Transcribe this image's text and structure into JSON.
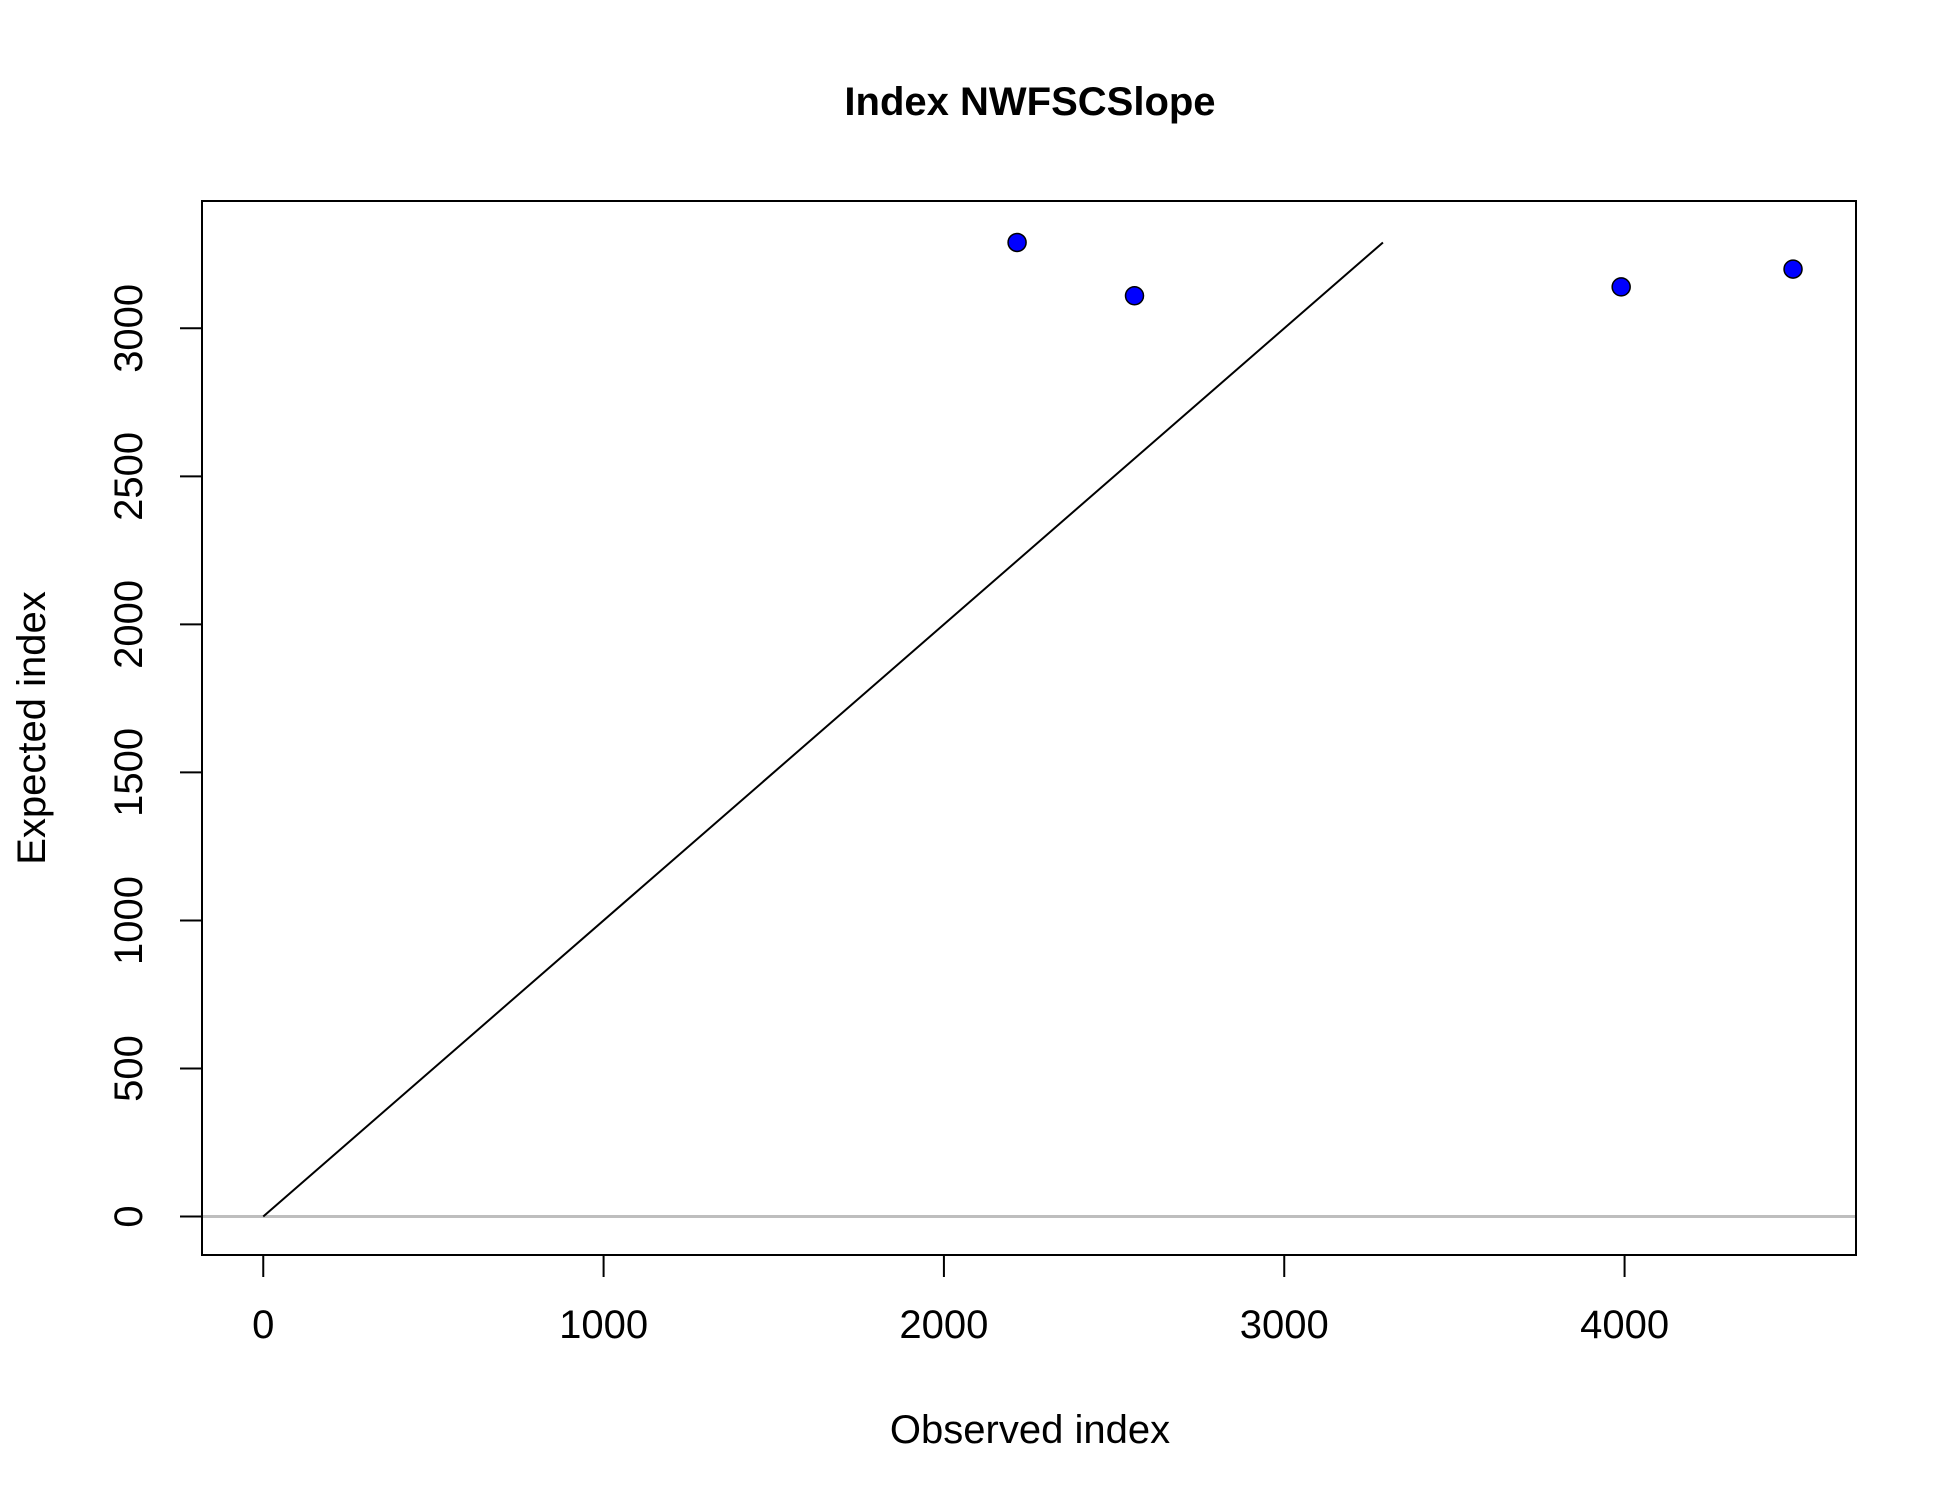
{
  "chart_data": {
    "type": "scatter",
    "title": "Index NWFSCSlope",
    "xlabel": "Observed index",
    "ylabel": "Expected index",
    "xlim": [
      -180,
      4680
    ],
    "ylim": [
      -130,
      3430
    ],
    "x_ticks": [
      0,
      1000,
      2000,
      3000,
      4000
    ],
    "y_ticks": [
      0,
      500,
      1000,
      1500,
      2000,
      2500,
      3000
    ],
    "points": [
      {
        "x": 2215,
        "y": 3290
      },
      {
        "x": 2560,
        "y": 3110
      },
      {
        "x": 3990,
        "y": 3140
      },
      {
        "x": 4495,
        "y": 3200
      }
    ],
    "point_color": "#0000ff",
    "reference_line": {
      "from": [
        0,
        0
      ],
      "to": [
        3290,
        3290
      ],
      "color": "#000000"
    },
    "zero_line": {
      "y": 0,
      "color": "#bebebe"
    },
    "grid": false,
    "legend": "none"
  }
}
